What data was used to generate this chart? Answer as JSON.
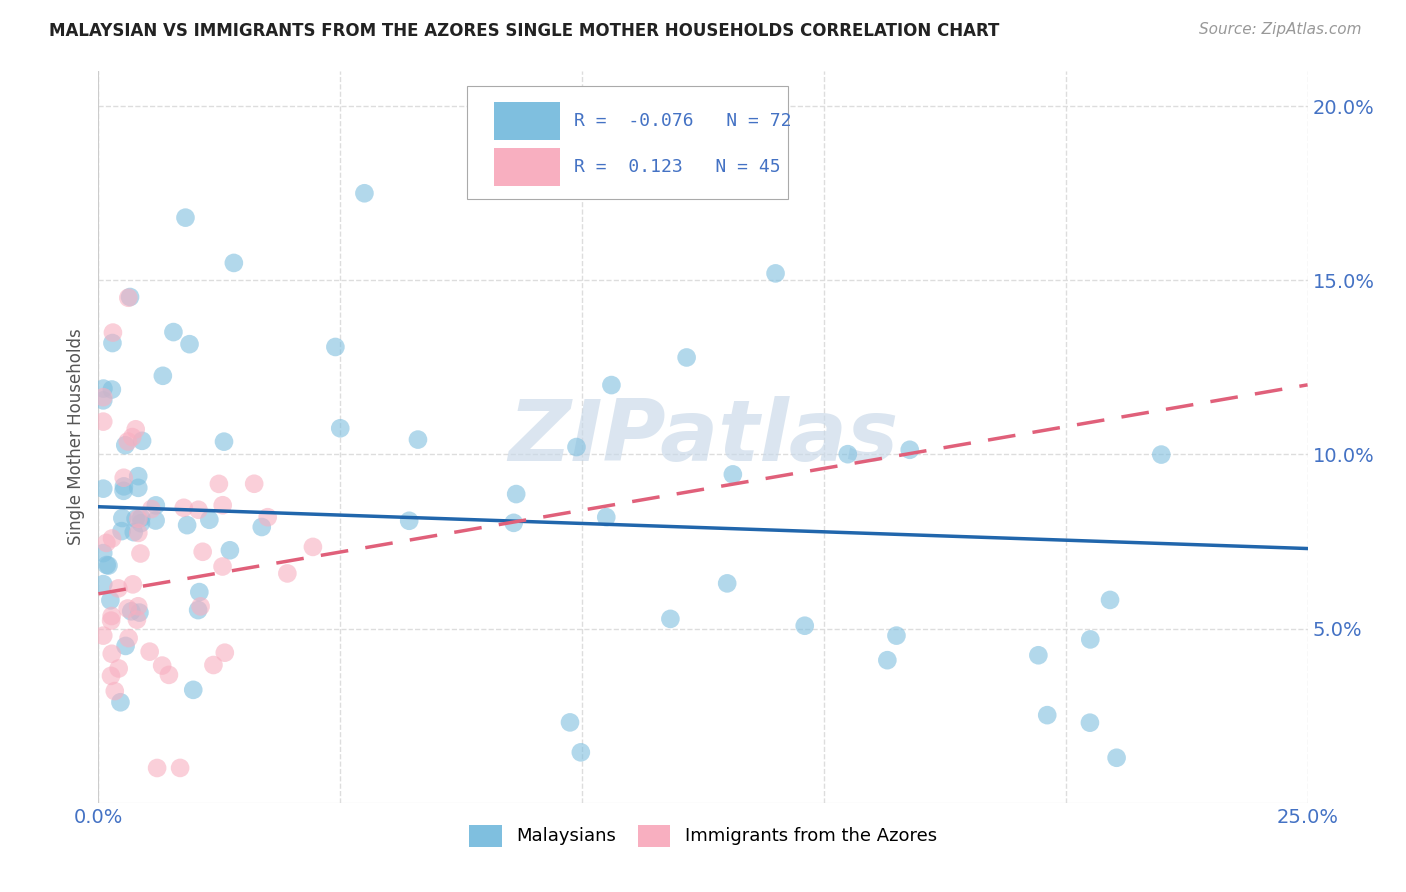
{
  "title": "MALAYSIAN VS IMMIGRANTS FROM THE AZORES SINGLE MOTHER HOUSEHOLDS CORRELATION CHART",
  "source": "Source: ZipAtlas.com",
  "ylabel_label": "Single Mother Households",
  "x_min": 0.0,
  "x_max": 0.25,
  "y_min": 0.0,
  "y_max": 0.21,
  "x_tick_positions": [
    0.0,
    0.05,
    0.1,
    0.15,
    0.2,
    0.25
  ],
  "x_tick_labels": [
    "0.0%",
    "",
    "",
    "",
    "",
    "25.0%"
  ],
  "y_tick_positions": [
    0.05,
    0.1,
    0.15,
    0.2
  ],
  "y_tick_labels": [
    "5.0%",
    "10.0%",
    "15.0%",
    "20.0%"
  ],
  "blue_scatter_color": "#7fbfdf",
  "pink_scatter_color": "#f8afc0",
  "blue_line_color": "#2166ac",
  "pink_line_color": "#e0607a",
  "R_blue": -0.076,
  "N_blue": 72,
  "R_pink": 0.123,
  "N_pink": 45,
  "legend_label_blue": "Malaysians",
  "legend_label_pink": "Immigrants from the Azores",
  "background_color": "#ffffff",
  "grid_color": "#dddddd",
  "watermark_text": "ZIPatlas",
  "watermark_color": "#c8d8e8",
  "axis_label_color": "#4472c4",
  "title_color": "#222222",
  "source_color": "#999999",
  "blue_line_intercept": 0.085,
  "blue_line_slope": -0.048,
  "pink_line_intercept": 0.06,
  "pink_line_slope": 0.24
}
